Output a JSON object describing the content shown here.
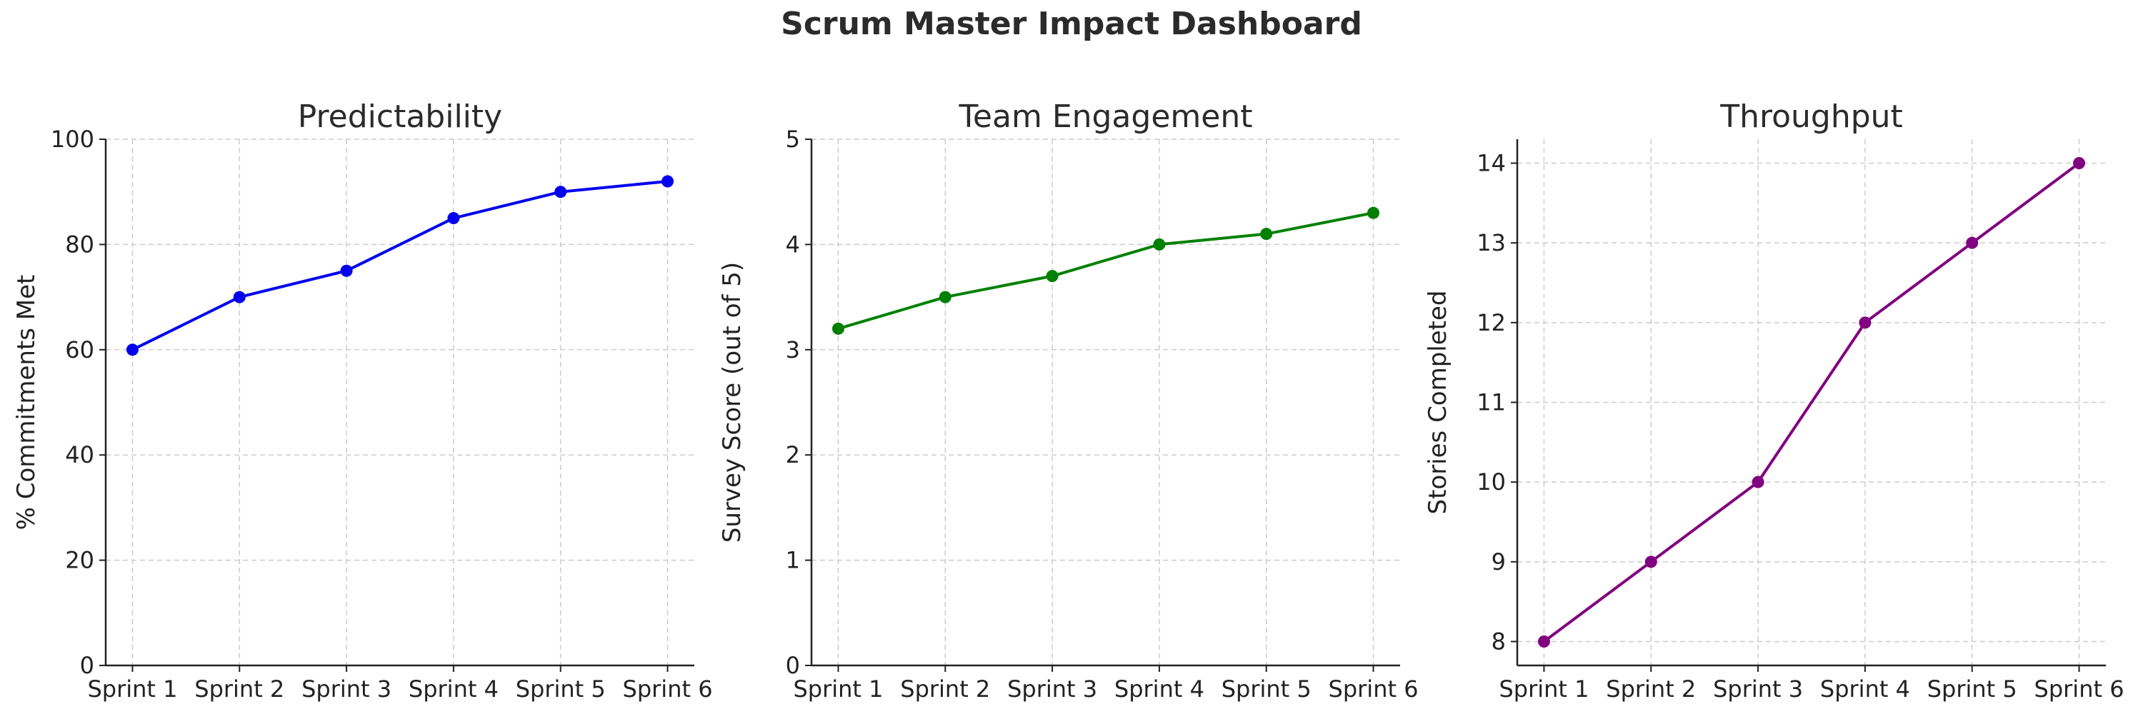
{
  "dashboard": {
    "title": "Scrum Master Impact Dashboard"
  },
  "chart_data": [
    {
      "type": "line",
      "title": "Predictability",
      "xlabel": "",
      "ylabel": "% Commitments Met",
      "categories": [
        "Sprint 1",
        "Sprint 2",
        "Sprint 3",
        "Sprint 4",
        "Sprint 5",
        "Sprint 6"
      ],
      "values": [
        60,
        70,
        75,
        85,
        90,
        92
      ],
      "ylim": [
        0,
        100
      ],
      "yticks": [
        0,
        20,
        40,
        60,
        80,
        100
      ],
      "color": "#0000ee",
      "grid": true
    },
    {
      "type": "line",
      "title": "Team Engagement",
      "xlabel": "",
      "ylabel": "Survey Score (out of 5)",
      "categories": [
        "Sprint 1",
        "Sprint 2",
        "Sprint 3",
        "Sprint 4",
        "Sprint 5",
        "Sprint 6"
      ],
      "values": [
        3.2,
        3.5,
        3.7,
        4.0,
        4.1,
        4.3
      ],
      "ylim": [
        0,
        5
      ],
      "yticks": [
        0,
        1,
        2,
        3,
        4,
        5
      ],
      "color": "#008000",
      "grid": true
    },
    {
      "type": "line",
      "title": "Throughput",
      "xlabel": "",
      "ylabel": "Stories Completed",
      "categories": [
        "Sprint 1",
        "Sprint 2",
        "Sprint 3",
        "Sprint 4",
        "Sprint 5",
        "Sprint 6"
      ],
      "values": [
        8,
        9,
        10,
        12,
        13,
        14
      ],
      "ylim": [
        7.7,
        14.3
      ],
      "yticks": [
        8,
        9,
        10,
        11,
        12,
        13,
        14
      ],
      "color": "#800080",
      "grid": true
    }
  ]
}
